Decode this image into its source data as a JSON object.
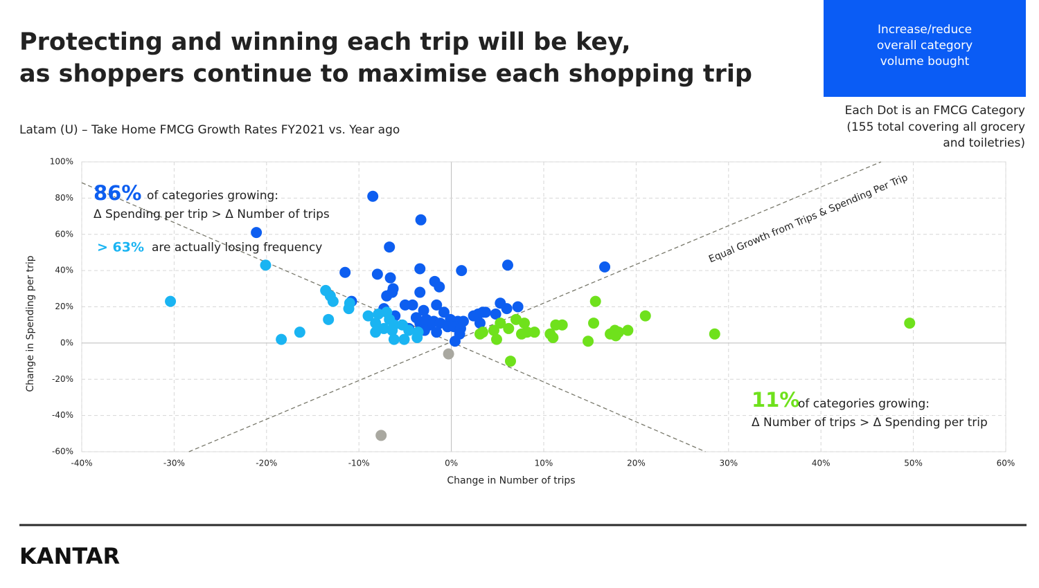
{
  "slide": {
    "title": [
      "Protecting and winning each trip will be key,",
      "as shoppers continue to maximise each shopping trip"
    ],
    "box_text": [
      "Increase/reduce",
      "overall category",
      "volume bought"
    ],
    "note": [
      "Each Dot is an FMCG Category",
      "(155 total covering all grocery",
      "and toiletries)"
    ],
    "logo": "KANTAR"
  },
  "chart_data": {
    "type": "scatter",
    "subtitle": "Latam (U) – Take Home FMCG Growth Rates FY2021 vs. Year ago",
    "x_label": "Change in Number of trips",
    "y_label": "Change in Spending per trip",
    "xlim": [
      -40,
      60
    ],
    "ylim": [
      -60,
      100
    ],
    "xticks": [
      {
        "value": -40,
        "label": "-40%"
      },
      {
        "value": -30,
        "label": "-30%"
      },
      {
        "value": -20,
        "label": "-20%"
      },
      {
        "value": -10,
        "label": "-10%"
      },
      {
        "value": 0,
        "label": "0%"
      },
      {
        "value": 10,
        "label": "10%"
      },
      {
        "value": 20,
        "label": "20%"
      },
      {
        "value": 30,
        "label": "30%"
      },
      {
        "value": 40,
        "label": "40%"
      },
      {
        "value": 50,
        "label": "50%"
      },
      {
        "value": 60,
        "label": "60%"
      }
    ],
    "yticks": [
      {
        "value": -60,
        "label": "-60%"
      },
      {
        "value": -40,
        "label": "-40%"
      },
      {
        "value": -20,
        "label": "-20%"
      },
      {
        "value": 0,
        "label": "0%"
      },
      {
        "value": 20,
        "label": "20%"
      },
      {
        "value": 40,
        "label": "40%"
      },
      {
        "value": 60,
        "label": "60%"
      },
      {
        "value": 80,
        "label": "80%"
      },
      {
        "value": 100,
        "label": "100%"
      }
    ],
    "grid": true,
    "series": [
      {
        "color": "#0d5ef0",
        "x": [
          -8.5,
          -3.3,
          -21.1,
          -6.7,
          6.1,
          16.6,
          -3.4,
          1.1,
          -11.5,
          -8.0,
          -6.6,
          -1.8,
          -1.3,
          -6.3,
          -3.4,
          -6.4,
          -7.0,
          -10.8,
          -1.6,
          5.3,
          7.2,
          -5.0,
          -4.2,
          -7.3,
          -3.0,
          6.0,
          4.8,
          -0.8,
          3.4,
          3.7,
          2.9,
          2.4,
          -6.1,
          -3.8,
          -2.7,
          -1.9,
          -0.1,
          0.7,
          1.3,
          -3.4,
          -2.3,
          -1.2,
          -0.4,
          0.3,
          1.0,
          -4.6,
          -2.9,
          -1.6,
          0.9,
          3.1,
          0.4
        ],
        "values": [
          81,
          68,
          61,
          53,
          43,
          42,
          41,
          40,
          39,
          38,
          36,
          34,
          31,
          30,
          28,
          28,
          26,
          23,
          21,
          22,
          20,
          21,
          21,
          19,
          18,
          19,
          16,
          17,
          17,
          17,
          16,
          15,
          15,
          14,
          13,
          12,
          13,
          12,
          12,
          11,
          10,
          11,
          9,
          9,
          8,
          8,
          7,
          6,
          5,
          11,
          1
        ]
      },
      {
        "color": "#1ab4f2",
        "x": [
          -30.4,
          -20.1,
          -13.6,
          -13.1,
          -12.8,
          -11.0,
          -11.1,
          -13.3,
          -18.4,
          -16.4,
          -9.0,
          -7.9,
          -8.2,
          -8.2,
          -7.3,
          -6.7,
          -6.2,
          -6.4,
          -6.2,
          -5.3,
          -5.1,
          -4.6,
          -3.7,
          -3.6,
          -7.0
        ],
        "values": [
          23,
          43,
          29,
          26,
          23,
          22,
          19,
          13,
          2,
          6,
          15,
          16,
          11,
          6,
          8,
          13,
          10,
          7,
          2,
          10,
          2,
          7,
          3,
          6,
          17
        ]
      },
      {
        "color": "#6fe11c",
        "x": [
          15.6,
          21.0,
          15.4,
          11.3,
          12.0,
          7.0,
          7.9,
          6.2,
          5.3,
          4.6,
          3.4,
          8.2,
          9.0,
          7.6,
          10.7,
          11.0,
          17.7,
          19.1,
          17.2,
          18.1,
          17.8,
          14.8,
          4.9,
          28.5,
          49.6,
          6.4,
          3.1
        ],
        "values": [
          23,
          15,
          11,
          10,
          10,
          13,
          11,
          8,
          11,
          7,
          6,
          6,
          6,
          5,
          5,
          3,
          7,
          7,
          5,
          6,
          4,
          1,
          2,
          5,
          11,
          -10,
          5
        ]
      },
      {
        "color": "#a9a8a0",
        "x": [
          -0.3,
          -7.6
        ],
        "values": [
          -6,
          -51
        ]
      }
    ],
    "reference_lines": [
      {
        "x": [
          -28.4,
          46.5
        ],
        "y": [
          -60,
          100
        ],
        "label": "Equal Growth from Trips & Spending Per Trip"
      },
      {
        "x": [
          -40,
          27.5
        ],
        "y": [
          88.5,
          -60
        ]
      }
    ],
    "annotations": [
      {
        "big": "86%",
        "color": "#0d5ef0",
        "lines": [
          "of categories growing:",
          "Δ Spending per trip > Δ Number of trips"
        ]
      },
      {
        "big": "> 63%",
        "color": "#1ab4f2",
        "lines": [
          "are actually losing frequency"
        ]
      },
      {
        "big": "11%",
        "color": "#6fe11c",
        "lines": [
          "of categories growing:",
          "Δ Number of trips > Δ Spending per trip"
        ]
      }
    ]
  }
}
